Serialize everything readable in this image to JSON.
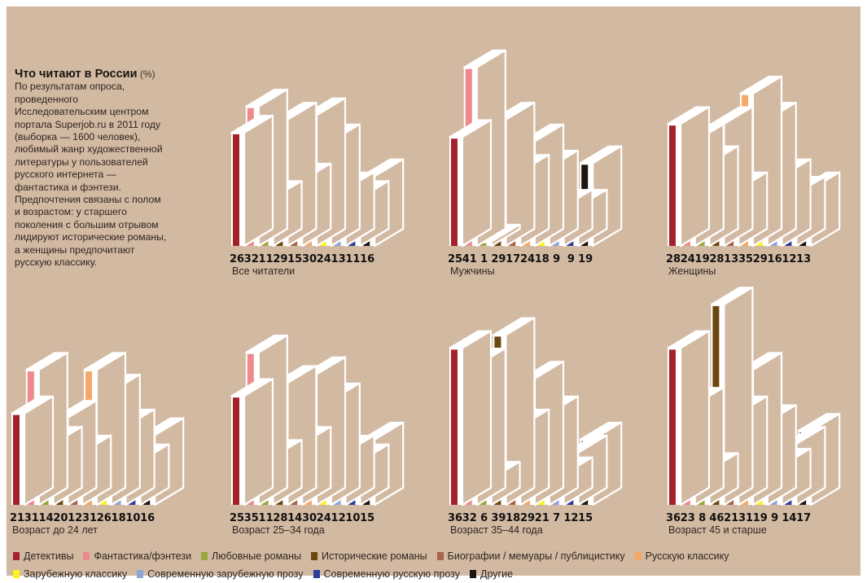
{
  "intro": {
    "title": "Что читают в России",
    "unit": "(%)",
    "lines": [
      "По результатам опроса,",
      "проведенного",
      "Исследовательским центром",
      "портала Superjob.ru в 2011 году",
      "(выборка — 1600 человек),",
      "любимый жанр художественной",
      "литературы у пользователей",
      "русского интернета —",
      "фантастика и фэнтези.",
      "Предпочтения связаны с полом",
      "и возрастом: у старшего",
      "поколения с большим отрывом",
      "лидируют исторические романы,",
      "а женщины предпочитают",
      "русскую классику."
    ]
  },
  "colors": {
    "background": "#d2b9a2",
    "box_face": "#ffffff"
  },
  "chart_data": {
    "type": "bar",
    "categories": [
      "Детективы",
      "Фантастика/фэнтези",
      "Любовные романы",
      "Исторические романы",
      "Биографии / мемуары / публицистику",
      "Русскую классику",
      "Зарубежную классику",
      "Современную зарубежную прозу",
      "Современную русскую прозу",
      "Другие"
    ],
    "category_colors": [
      "#a3212c",
      "#ee8a8c",
      "#9aa741",
      "#6b4610",
      "#a8644a",
      "#f4a968",
      "#fdf21e",
      "#8fa6d6",
      "#2f3e97",
      "#1c1410"
    ],
    "unit": "%",
    "groups": [
      {
        "name": "Все читатели",
        "values": [
          26,
          32,
          11,
          29,
          15,
          30,
          24,
          13,
          11,
          16
        ]
      },
      {
        "name": "Мужчины",
        "values": [
          25,
          41,
          1,
          29,
          17,
          24,
          18,
          9,
          9,
          19
        ]
      },
      {
        "name": "Женщины",
        "values": [
          28,
          24,
          19,
          28,
          13,
          35,
          29,
          16,
          12,
          13
        ]
      },
      {
        "name": "Возраст до 24 лет",
        "values": [
          21,
          31,
          14,
          20,
          12,
          31,
          26,
          18,
          10,
          16
        ]
      },
      {
        "name": "Возраст 25–34 года",
        "values": [
          25,
          35,
          11,
          28,
          14,
          30,
          24,
          12,
          10,
          15
        ]
      },
      {
        "name": "Возраст 35–44 года",
        "values": [
          36,
          32,
          6,
          39,
          18,
          29,
          21,
          7,
          12,
          15
        ]
      },
      {
        "name": "Возраст 45 и старше",
        "values": [
          36,
          23,
          8,
          46,
          21,
          31,
          19,
          9,
          14,
          17
        ]
      }
    ],
    "legend_position": "bottom",
    "grid": false
  }
}
